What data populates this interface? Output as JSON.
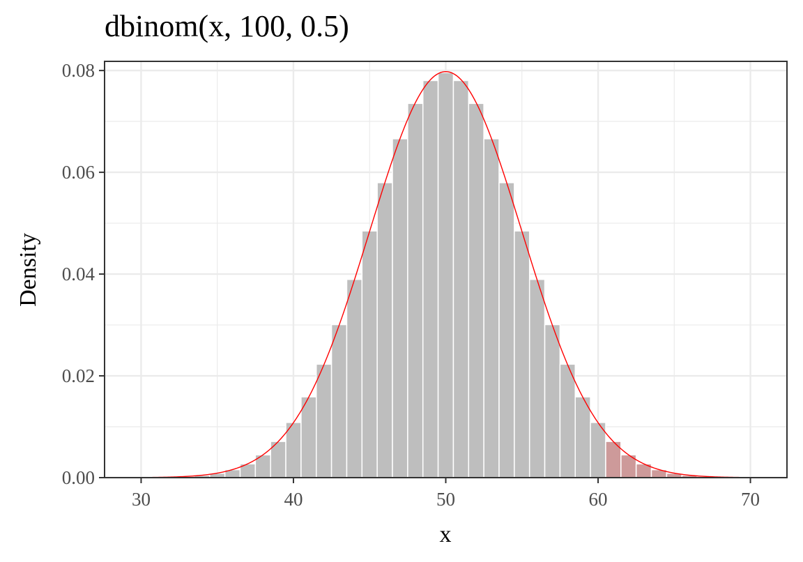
{
  "chart_data": {
    "type": "bar",
    "title": "dbinom(x, 100, 0.5)",
    "xlabel": "x",
    "ylabel": "Density",
    "xlim": [
      27.6,
      72.4
    ],
    "ylim": [
      0,
      0.0818
    ],
    "x_ticks": [
      {
        "value": 30,
        "label": "30"
      },
      {
        "value": 40,
        "label": "40"
      },
      {
        "value": 50,
        "label": "50"
      },
      {
        "value": 60,
        "label": "60"
      },
      {
        "value": 70,
        "label": "70"
      }
    ],
    "y_ticks": [
      {
        "value": 0,
        "label": "0.00"
      },
      {
        "value": 0.02,
        "label": "0.02"
      },
      {
        "value": 0.04,
        "label": "0.04"
      },
      {
        "value": 0.06,
        "label": "0.06"
      },
      {
        "value": 0.08,
        "label": "0.08"
      }
    ],
    "x_minor_grid": [
      35,
      45,
      55,
      65
    ],
    "y_minor_grid": [
      0.01,
      0.03,
      0.05,
      0.07
    ],
    "grid": true,
    "bars": {
      "x": [
        30,
        31,
        32,
        33,
        34,
        35,
        36,
        37,
        38,
        39,
        40,
        41,
        42,
        43,
        44,
        45,
        46,
        47,
        48,
        49,
        50,
        51,
        52,
        53,
        54,
        55,
        56,
        57,
        58,
        59,
        60,
        61,
        62,
        63,
        64,
        65,
        66,
        67,
        68,
        69,
        70
      ],
      "values": [
        2e-05,
        5e-05,
        0.00011,
        0.00023,
        0.00046,
        0.00086,
        0.00156,
        0.0027,
        0.00447,
        0.00711,
        0.01084,
        0.01587,
        0.02229,
        0.03007,
        0.03895,
        0.04847,
        0.05796,
        0.06659,
        0.07353,
        0.07803,
        0.07959,
        0.07803,
        0.07353,
        0.06659,
        0.05796,
        0.04847,
        0.03895,
        0.03007,
        0.02229,
        0.01587,
        0.01084,
        0.00711,
        0.00447,
        0.0027,
        0.00156,
        0.00086,
        0.00046,
        0.00023,
        0.00011,
        5e-05,
        2e-05
      ],
      "highlight_from": 61,
      "color": "#bebebe",
      "highlight_color": "#cd9a9a",
      "outline_color": "#ffffff"
    },
    "curve": {
      "label": "",
      "mean": 50,
      "sd": 5,
      "x_range": [
        30,
        70
      ],
      "color": "#ff0000"
    }
  }
}
